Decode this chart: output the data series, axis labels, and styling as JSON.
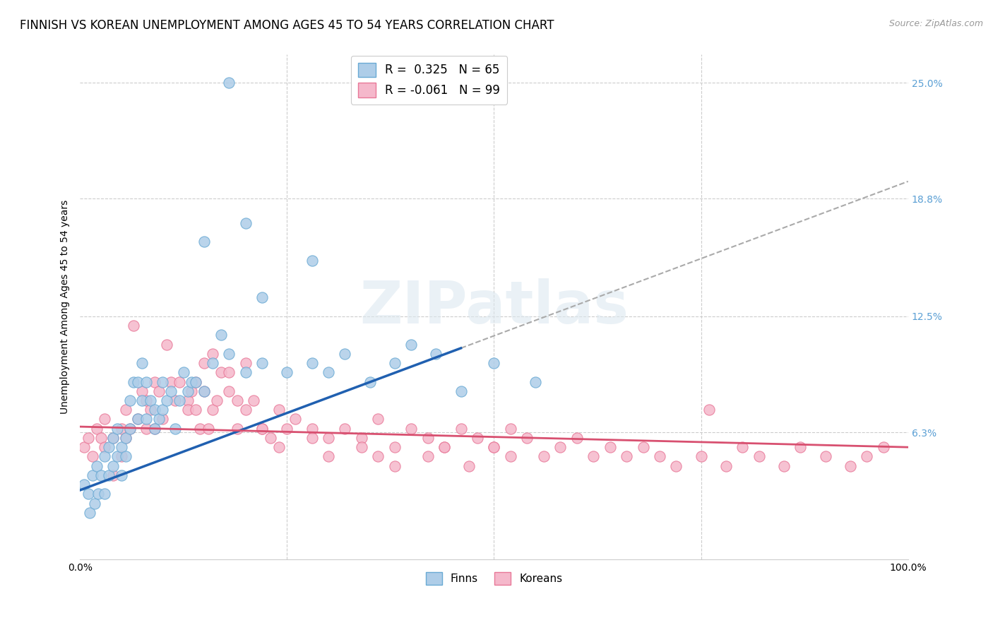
{
  "title": "FINNISH VS KOREAN UNEMPLOYMENT AMONG AGES 45 TO 54 YEARS CORRELATION CHART",
  "source_text": "Source: ZipAtlas.com",
  "ylabel": "Unemployment Among Ages 45 to 54 years",
  "xlim": [
    0.0,
    1.0
  ],
  "ylim": [
    -0.005,
    0.265
  ],
  "yticks": [
    0.063,
    0.125,
    0.188,
    0.25
  ],
  "ytick_labels": [
    "6.3%",
    "12.5%",
    "18.8%",
    "25.0%"
  ],
  "finns_color": "#aecde8",
  "koreans_color": "#f5b8cb",
  "finns_edge_color": "#6aaad4",
  "koreans_edge_color": "#e87898",
  "finns_line_color": "#2060b0",
  "koreans_line_color": "#d85070",
  "dashed_line_color": "#aaaaaa",
  "legend_finns_label": "R =  0.325   N = 65",
  "legend_koreans_label": "R = -0.061   N = 99",
  "legend_finns_display": "Finns",
  "legend_koreans_display": "Koreans",
  "title_fontsize": 12,
  "axis_label_fontsize": 10,
  "tick_fontsize": 10,
  "legend_fontsize": 12,
  "watermark_text": "ZIPatlas",
  "finns_x": [
    0.005,
    0.01,
    0.012,
    0.015,
    0.018,
    0.02,
    0.022,
    0.025,
    0.03,
    0.03,
    0.035,
    0.035,
    0.04,
    0.04,
    0.045,
    0.045,
    0.05,
    0.05,
    0.055,
    0.055,
    0.06,
    0.06,
    0.065,
    0.07,
    0.07,
    0.075,
    0.075,
    0.08,
    0.08,
    0.085,
    0.09,
    0.09,
    0.095,
    0.1,
    0.1,
    0.105,
    0.11,
    0.115,
    0.12,
    0.125,
    0.13,
    0.135,
    0.14,
    0.15,
    0.16,
    0.17,
    0.18,
    0.2,
    0.22,
    0.25,
    0.28,
    0.3,
    0.32,
    0.35,
    0.38,
    0.4,
    0.43,
    0.46,
    0.5,
    0.55,
    0.28,
    0.15,
    0.22,
    0.18,
    0.2
  ],
  "finns_y": [
    0.035,
    0.03,
    0.02,
    0.04,
    0.025,
    0.045,
    0.03,
    0.04,
    0.05,
    0.03,
    0.04,
    0.055,
    0.045,
    0.06,
    0.05,
    0.065,
    0.055,
    0.04,
    0.06,
    0.05,
    0.065,
    0.08,
    0.09,
    0.09,
    0.07,
    0.1,
    0.08,
    0.07,
    0.09,
    0.08,
    0.075,
    0.065,
    0.07,
    0.075,
    0.09,
    0.08,
    0.085,
    0.065,
    0.08,
    0.095,
    0.085,
    0.09,
    0.09,
    0.085,
    0.1,
    0.115,
    0.105,
    0.095,
    0.1,
    0.095,
    0.1,
    0.095,
    0.105,
    0.09,
    0.1,
    0.11,
    0.105,
    0.085,
    0.1,
    0.09,
    0.155,
    0.165,
    0.135,
    0.25,
    0.175
  ],
  "koreans_x": [
    0.005,
    0.01,
    0.015,
    0.02,
    0.025,
    0.03,
    0.03,
    0.04,
    0.04,
    0.05,
    0.05,
    0.055,
    0.055,
    0.06,
    0.065,
    0.07,
    0.075,
    0.08,
    0.08,
    0.085,
    0.09,
    0.09,
    0.095,
    0.1,
    0.105,
    0.11,
    0.115,
    0.12,
    0.13,
    0.13,
    0.135,
    0.14,
    0.145,
    0.15,
    0.155,
    0.16,
    0.165,
    0.17,
    0.18,
    0.19,
    0.19,
    0.2,
    0.21,
    0.22,
    0.23,
    0.24,
    0.25,
    0.26,
    0.28,
    0.3,
    0.32,
    0.34,
    0.36,
    0.38,
    0.4,
    0.42,
    0.44,
    0.46,
    0.48,
    0.5,
    0.52,
    0.54,
    0.56,
    0.58,
    0.6,
    0.62,
    0.64,
    0.66,
    0.68,
    0.7,
    0.72,
    0.75,
    0.78,
    0.8,
    0.82,
    0.85,
    0.87,
    0.9,
    0.93,
    0.95,
    0.97,
    0.36,
    0.38,
    0.14,
    0.15,
    0.16,
    0.18,
    0.2,
    0.22,
    0.5,
    0.52,
    0.34,
    0.3,
    0.28,
    0.24,
    0.47,
    0.44,
    0.42,
    0.76
  ],
  "koreans_y": [
    0.055,
    0.06,
    0.05,
    0.065,
    0.06,
    0.055,
    0.07,
    0.06,
    0.04,
    0.065,
    0.05,
    0.075,
    0.06,
    0.065,
    0.12,
    0.07,
    0.085,
    0.065,
    0.08,
    0.075,
    0.09,
    0.065,
    0.085,
    0.07,
    0.11,
    0.09,
    0.08,
    0.09,
    0.08,
    0.075,
    0.085,
    0.09,
    0.065,
    0.085,
    0.065,
    0.075,
    0.08,
    0.095,
    0.085,
    0.065,
    0.08,
    0.075,
    0.08,
    0.065,
    0.06,
    0.075,
    0.065,
    0.07,
    0.065,
    0.06,
    0.065,
    0.06,
    0.07,
    0.055,
    0.065,
    0.06,
    0.055,
    0.065,
    0.06,
    0.055,
    0.065,
    0.06,
    0.05,
    0.055,
    0.06,
    0.05,
    0.055,
    0.05,
    0.055,
    0.05,
    0.045,
    0.05,
    0.045,
    0.055,
    0.05,
    0.045,
    0.055,
    0.05,
    0.045,
    0.05,
    0.055,
    0.05,
    0.045,
    0.075,
    0.1,
    0.105,
    0.095,
    0.1,
    0.065,
    0.055,
    0.05,
    0.055,
    0.05,
    0.06,
    0.055,
    0.045,
    0.055,
    0.05,
    0.075
  ],
  "finns_line_x0": 0.0,
  "finns_line_y0": 0.032,
  "finns_line_x1": 0.46,
  "finns_line_y1": 0.108,
  "koreans_line_x0": 0.0,
  "koreans_line_y0": 0.066,
  "koreans_line_x1": 1.0,
  "koreans_line_y1": 0.055,
  "dashed_line_x0": 0.46,
  "dashed_line_x1": 1.0
}
